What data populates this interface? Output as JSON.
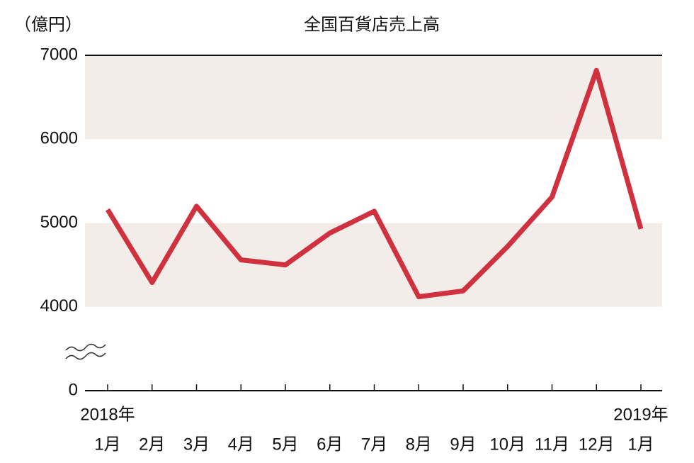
{
  "chart_data": {
    "type": "line",
    "title": "全国百貨店売上高",
    "y_unit_label": "（億円）",
    "categories": [
      "1月",
      "2月",
      "3月",
      "4月",
      "5月",
      "6月",
      "7月",
      "8月",
      "9月",
      "10月",
      "11月",
      "12月",
      "1月"
    ],
    "category_years": [
      "2018年",
      null,
      null,
      null,
      null,
      null,
      null,
      null,
      null,
      null,
      null,
      null,
      "2019年"
    ],
    "values": [
      5160,
      4290,
      5200,
      4560,
      4500,
      4880,
      5140,
      4120,
      4190,
      4720,
      5310,
      6820,
      4930
    ],
    "color": "#d0313f",
    "ylim": [
      0,
      7000
    ],
    "yticks": [
      0,
      4000,
      5000,
      6000,
      7000
    ],
    "axis_break": [
      0,
      4000
    ],
    "band_color": "#f2ede8"
  }
}
